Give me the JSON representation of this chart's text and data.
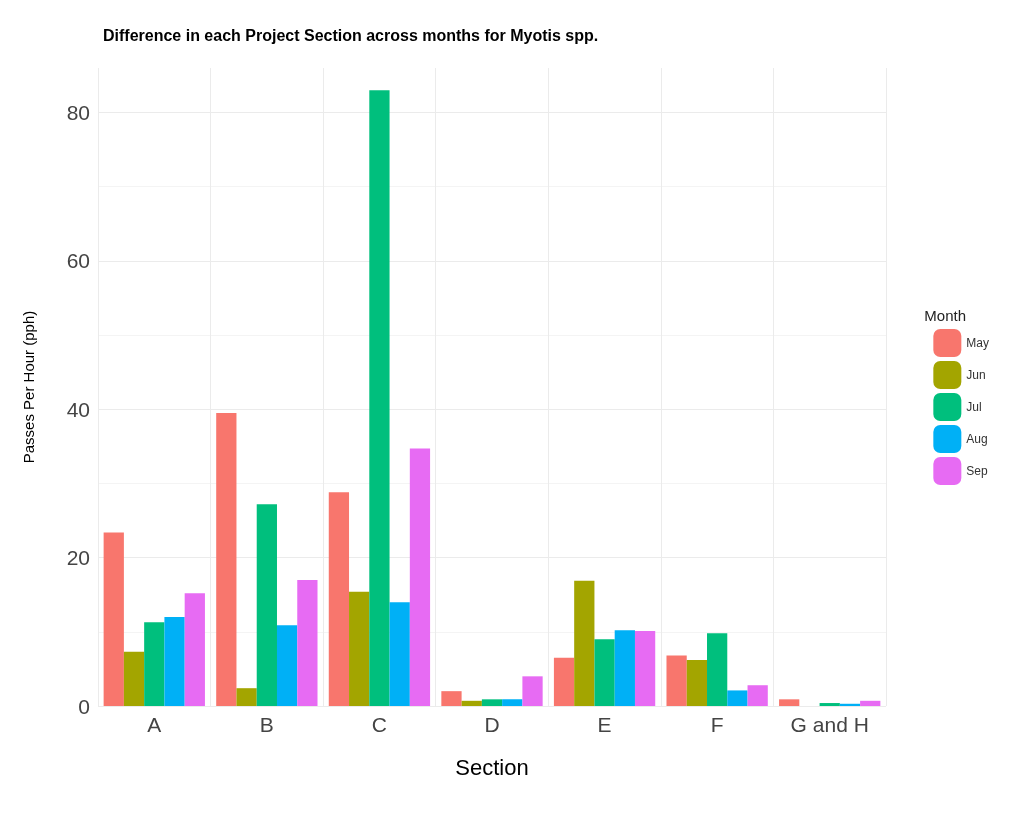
{
  "chart_data": {
    "type": "bar",
    "title": "Difference in each Project Section across months for Myotis spp.",
    "xlabel": "Section",
    "ylabel": "Passes Per Hour (pph)",
    "legend_title": "Month",
    "categories": [
      "A",
      "B",
      "C",
      "D",
      "E",
      "F",
      "G and H"
    ],
    "series": [
      {
        "name": "May",
        "color": "#f8766d",
        "values": [
          23.4,
          39.5,
          28.8,
          2.0,
          6.5,
          6.8,
          0.9
        ]
      },
      {
        "name": "Jun",
        "color": "#a3a500",
        "values": [
          7.3,
          2.4,
          15.4,
          0.7,
          16.9,
          6.2,
          0
        ]
      },
      {
        "name": "Jul",
        "color": "#00bf7d",
        "values": [
          11.3,
          27.2,
          83.0,
          0.9,
          9.0,
          9.8,
          0.4
        ]
      },
      {
        "name": "Aug",
        "color": "#00b0f6",
        "values": [
          12.0,
          10.9,
          14.0,
          0.9,
          10.2,
          2.1,
          0.3
        ]
      },
      {
        "name": "Sep",
        "color": "#e76bf3",
        "values": [
          15.2,
          17.0,
          34.7,
          4.0,
          10.1,
          2.8,
          0.7
        ]
      }
    ],
    "ylim": [
      0,
      86
    ],
    "yticks": [
      0,
      20,
      40,
      60,
      80
    ],
    "grid": true,
    "legend": "right"
  }
}
